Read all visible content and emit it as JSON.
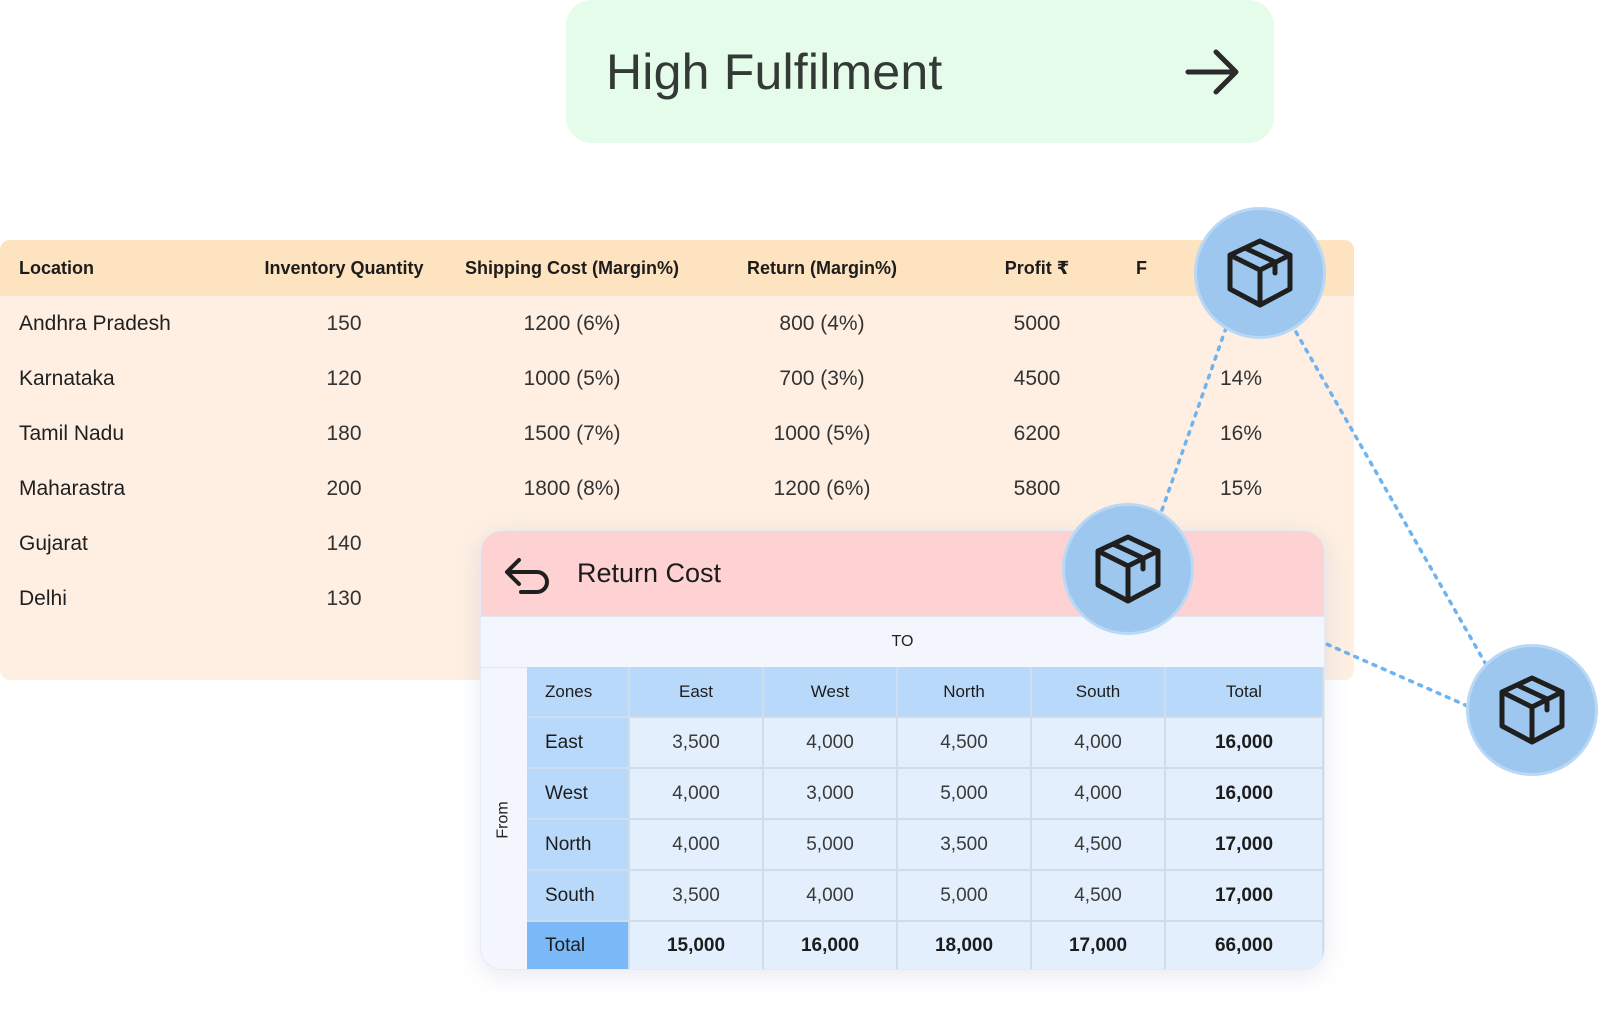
{
  "banner": {
    "title": "High Fulfilment",
    "arrow_icon": "arrow-right-icon"
  },
  "inventory": {
    "headers": [
      "Location",
      "Inventory Quantity",
      "Shipping Cost (Margin%)",
      "Return (Margin%)",
      "Profit ₹",
      "F"
    ],
    "rows": [
      {
        "location": "Andhra Pradesh",
        "qty": "150",
        "shipping": "1200 (6%)",
        "return": "800 (4%)",
        "profit": "5000",
        "pct": ""
      },
      {
        "location": "Karnataka",
        "qty": "120",
        "shipping": "1000 (5%)",
        "return": "700 (3%)",
        "profit": "4500",
        "pct": "14%"
      },
      {
        "location": "Tamil Nadu",
        "qty": "180",
        "shipping": "1500 (7%)",
        "return": "1000 (5%)",
        "profit": "6200",
        "pct": "16%"
      },
      {
        "location": "Maharastra",
        "qty": "200",
        "shipping": "1800 (8%)",
        "return": "1200 (6%)",
        "profit": "5800",
        "pct": "15%"
      },
      {
        "location": "Gujarat",
        "qty": "140",
        "shipping": "",
        "return": "",
        "profit": "",
        "pct": ""
      },
      {
        "location": "Delhi",
        "qty": "130",
        "shipping": "",
        "return": "",
        "profit": "",
        "pct": ""
      }
    ]
  },
  "return_cost": {
    "title": "Return Cost",
    "icon": "return-arrow-icon",
    "to_label": "TO",
    "from_label": "From",
    "columns": [
      "Zones",
      "East",
      "West",
      "North",
      "South",
      "Total"
    ],
    "rows": [
      {
        "zone": "East",
        "values": [
          "3,500",
          "4,000",
          "4,500",
          "4,000"
        ],
        "total": "16,000"
      },
      {
        "zone": "West",
        "values": [
          "4,000",
          "3,000",
          "5,000",
          "4,000"
        ],
        "total": "16,000"
      },
      {
        "zone": "North",
        "values": [
          "4,000",
          "5,000",
          "3,500",
          "4,500"
        ],
        "total": "17,000"
      },
      {
        "zone": "South",
        "values": [
          "3,500",
          "4,000",
          "5,000",
          "4,500"
        ],
        "total": "17,000"
      }
    ],
    "total_row": {
      "zone": "Total",
      "values": [
        "15,000",
        "16,000",
        "18,000",
        "17,000"
      ],
      "total": "66,000"
    }
  },
  "colors": {
    "banner_bg": "#e6fcea",
    "table_head": "#fde3bf",
    "table_bg": "#feefe2",
    "card_head": "#fed2d2",
    "circle": "#9ec7f0",
    "zone_header": "#b9d9fb",
    "total_zone": "#7bb9f8"
  },
  "decor_icons": [
    "package-box-icon",
    "package-box-icon",
    "package-box-icon"
  ]
}
